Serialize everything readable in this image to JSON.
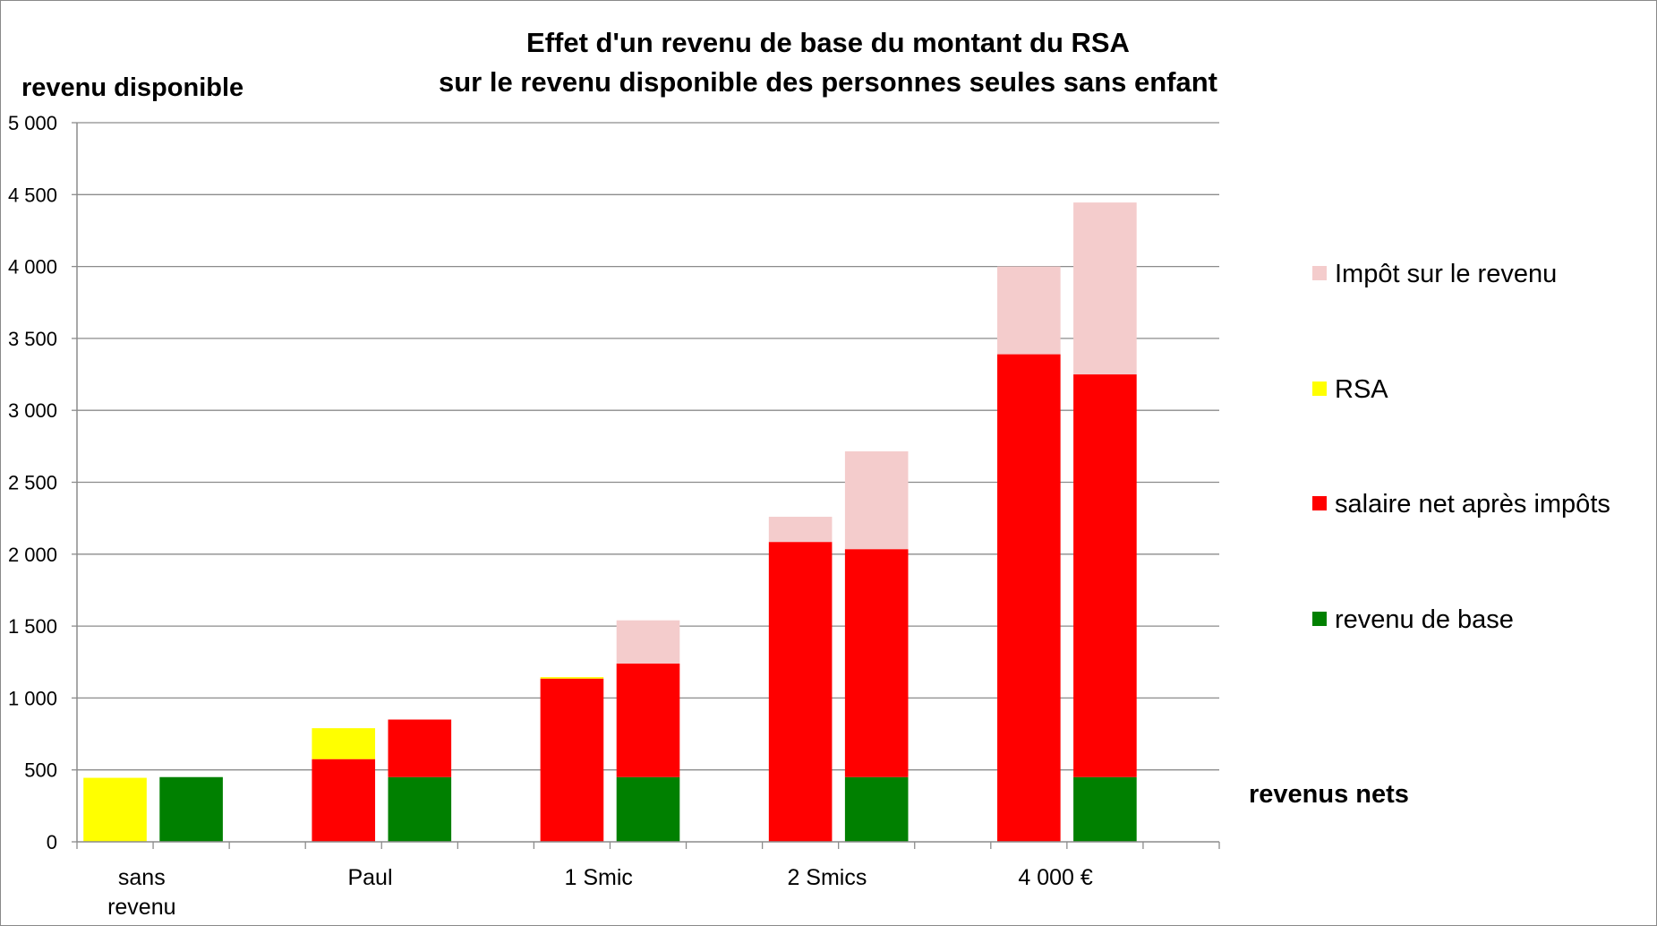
{
  "chart_data": {
    "type": "bar",
    "stacked": true,
    "title": [
      "Effet d'un revenu de base du montant du RSA",
      "sur le revenu disponible des personnes seules sans enfant"
    ],
    "ylabel": "revenu disponible",
    "xlabel": "revenus nets",
    "ylim": [
      0,
      5000
    ],
    "yticks": [
      0,
      500,
      1000,
      1500,
      2000,
      2500,
      3000,
      3500,
      4000,
      4500,
      5000
    ],
    "ytick_labels": [
      "0",
      "500",
      "1 000",
      "1 500",
      "2 000",
      "2 500",
      "3 000",
      "3 500",
      "4 000",
      "4 500",
      "5 000"
    ],
    "grid": true,
    "legend_position": "right",
    "categories": [
      "sans revenu",
      "Paul",
      "1 Smic",
      "2 Smics",
      "4 000 €"
    ],
    "category_label_lines": [
      [
        "sans",
        "revenu"
      ],
      [
        "Paul"
      ],
      [
        "1 Smic"
      ],
      [
        "2 Smics"
      ],
      [
        "4 000 €"
      ]
    ],
    "bars_per_category": 2,
    "series": [
      {
        "name": "revenu de base",
        "color": "#008000",
        "values": [
          [
            0,
            450
          ],
          [
            0,
            450
          ],
          [
            0,
            450
          ],
          [
            0,
            450
          ],
          [
            0,
            450
          ]
        ]
      },
      {
        "name": "salaire net après impôts",
        "color": "#ff0000",
        "values": [
          [
            0,
            0
          ],
          [
            575,
            400
          ],
          [
            1135,
            790
          ],
          [
            2085,
            1585
          ],
          [
            3390,
            2800
          ]
        ]
      },
      {
        "name": "RSA",
        "color": "#ffff00",
        "values": [
          [
            445,
            0
          ],
          [
            215,
            0
          ],
          [
            10,
            0
          ],
          [
            0,
            0
          ],
          [
            0,
            0
          ]
        ]
      },
      {
        "name": "Impôt sur le revenu",
        "color": "#f4cccc",
        "values": [
          [
            0,
            0
          ],
          [
            0,
            0
          ],
          [
            0,
            300
          ],
          [
            175,
            680
          ],
          [
            610,
            1195
          ]
        ]
      }
    ],
    "legend_order": [
      "Impôt sur le revenu",
      "RSA",
      "salaire net après impôts",
      "revenu de base"
    ]
  }
}
